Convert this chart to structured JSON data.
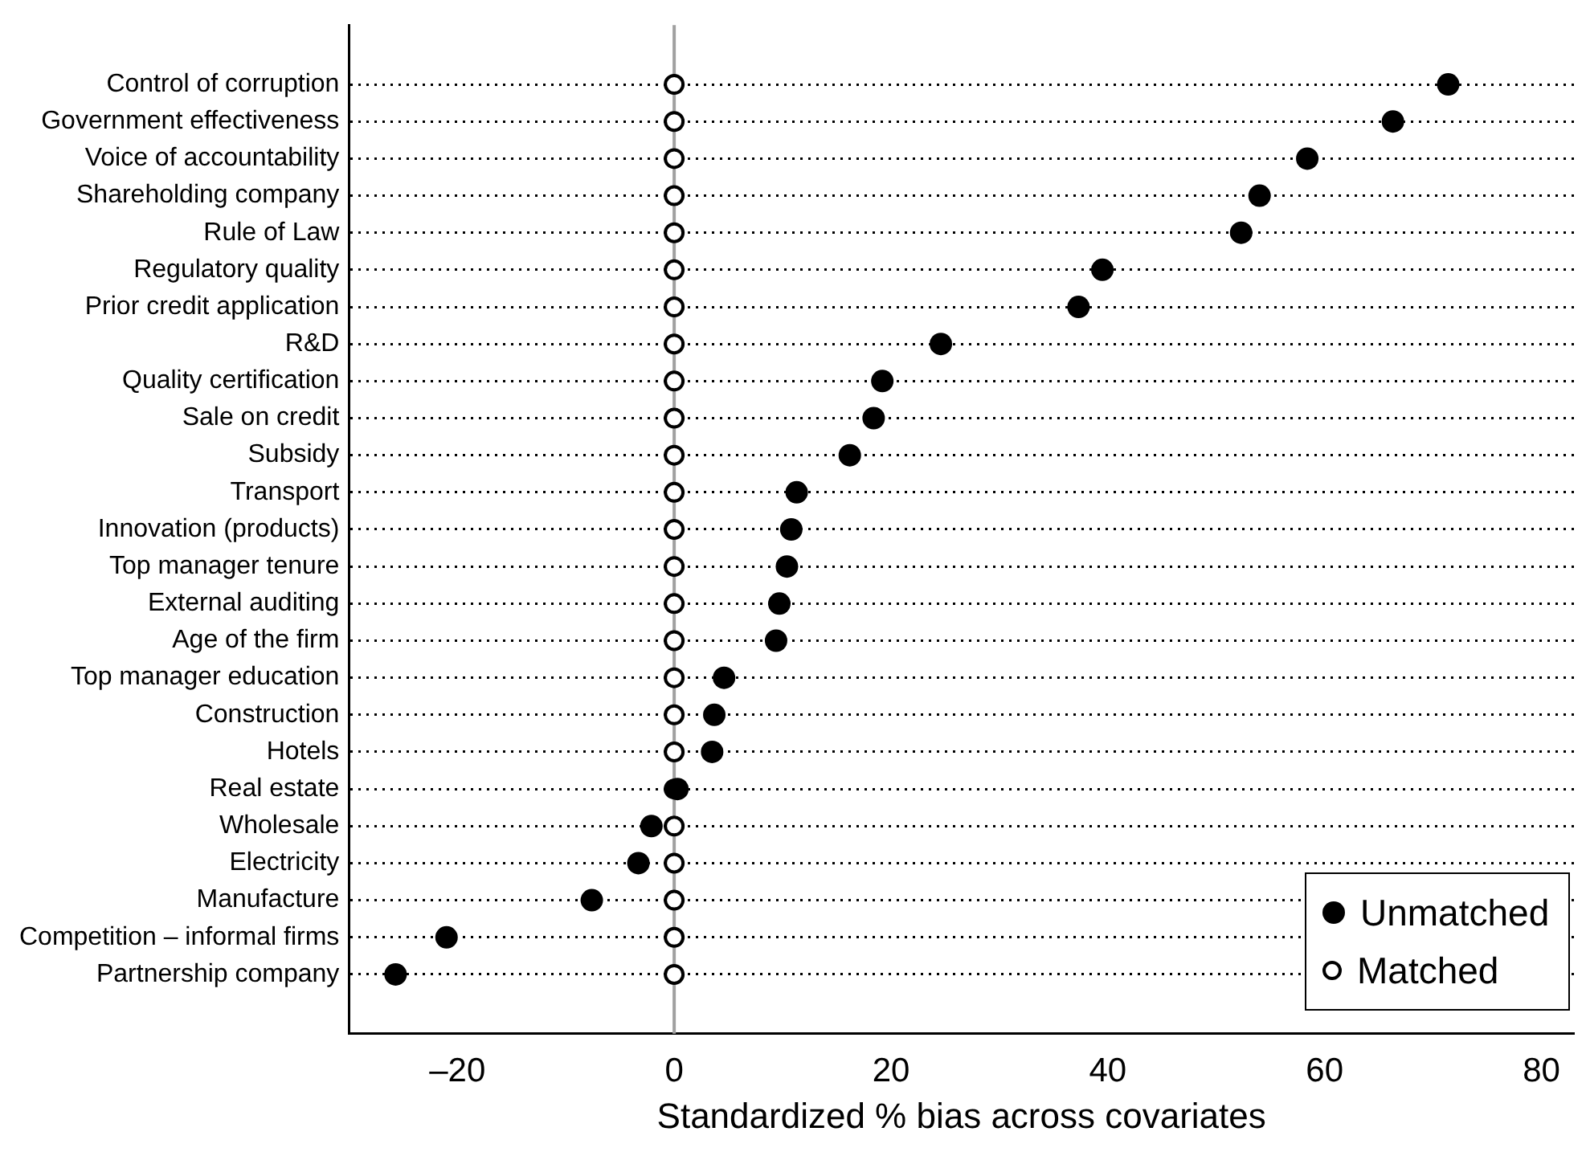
{
  "chart_data": {
    "type": "scatter",
    "orientation": "horizontal",
    "xlabel": "Standardized % bias across covariates",
    "categories": [
      "Control of corruption",
      "Government effectiveness",
      "Voice of accountability",
      "Shareholding company",
      "Rule of Law",
      "Regulatory quality",
      "Prior credit application",
      "R&D",
      "Quality certification",
      "Sale on credit",
      "Subsidy",
      "Transport",
      "Innovation (products)",
      "Top manager tenure",
      "External auditing",
      "Age of the firm",
      "Top manager education",
      "Construction",
      "Hotels",
      "Real estate",
      "Wholesale",
      "Electricity",
      "Manufacture",
      "Competition – informal firms",
      "Partnership company"
    ],
    "series": [
      {
        "name": "Unmatched",
        "color": "#000000",
        "marker": "circle",
        "values": [
          71.4,
          66.3,
          58.4,
          54.0,
          52.3,
          39.5,
          37.3,
          24.6,
          19.2,
          18.4,
          16.2,
          11.3,
          10.8,
          10.4,
          9.7,
          9.4,
          4.6,
          3.7,
          3.5,
          0.3,
          -2.1,
          -3.3,
          -7.6,
          -21.0,
          -25.7
        ]
      },
      {
        "name": "Matched",
        "color": "#ffffff",
        "marker": "circle",
        "values": [
          0,
          0,
          0,
          0,
          0,
          0,
          0,
          0,
          0,
          0,
          0,
          0,
          0,
          0,
          0,
          0,
          0,
          0,
          0,
          0,
          0,
          0,
          0,
          0,
          0
        ]
      }
    ],
    "xlim": [
      -30,
      83
    ],
    "xticks": [
      {
        "value": -20,
        "label": "–20"
      },
      0,
      20,
      40,
      60,
      80
    ],
    "grid": "y",
    "line_style": "dotted",
    "legend": "bottom right",
    "ref_lines": [
      {
        "axis": "x",
        "value": 0,
        "color": "#a0a0a0"
      }
    ]
  }
}
